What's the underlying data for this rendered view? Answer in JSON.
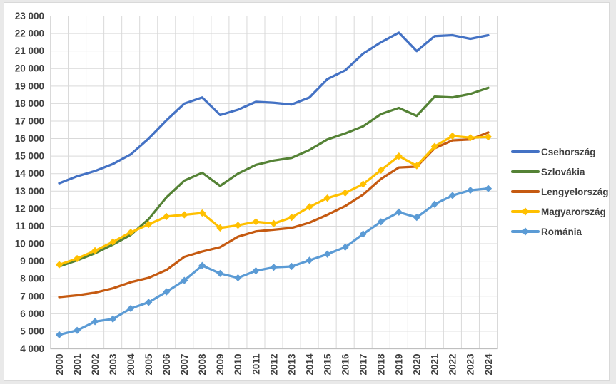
{
  "chart_data": {
    "type": "line",
    "title": "",
    "xlabel": "",
    "ylabel": "",
    "grid": true,
    "x_categories": [
      "2000",
      "2001",
      "2002",
      "2003",
      "2004",
      "2005",
      "2006",
      "2007",
      "2008",
      "2009",
      "2010",
      "2011",
      "2012",
      "2013",
      "2014",
      "2015",
      "2016",
      "2017",
      "2018",
      "2019",
      "2020",
      "2021",
      "2022",
      "2023",
      "2024"
    ],
    "y_axis": {
      "min": 4000,
      "max": 23000,
      "step": 1000,
      "tick_labels": [
        "4 000",
        "5 000",
        "6 000",
        "7 000",
        "8 000",
        "9 000",
        "10 000",
        "11 000",
        "12 000",
        "13 000",
        "14 000",
        "15 000",
        "16 000",
        "17 000",
        "18 000",
        "19 000",
        "20 000",
        "21 000",
        "22 000",
        "23 000"
      ]
    },
    "legend": {
      "position": "right",
      "entries": [
        "Csehország",
        "Szlovákia",
        "Lengyelország",
        "Magyarország",
        "Románia"
      ]
    },
    "series": [
      {
        "name": "Csehország",
        "color": "#4472C4",
        "marker": "none",
        "values": [
          13450,
          13850,
          14150,
          14550,
          15100,
          16000,
          17050,
          18000,
          18350,
          17350,
          17650,
          18100,
          18050,
          17950,
          18350,
          19400,
          19900,
          20850,
          21500,
          22050,
          21000,
          21850,
          21900,
          21700,
          21900
        ]
      },
      {
        "name": "Szlovákia",
        "color": "#548235",
        "marker": "none",
        "values": [
          8700,
          9050,
          9450,
          9950,
          10500,
          11400,
          12650,
          13600,
          14050,
          13300,
          14000,
          14500,
          14750,
          14900,
          15350,
          15950,
          16300,
          16700,
          17400,
          17750,
          17300,
          18400,
          18350,
          18550,
          18900
        ]
      },
      {
        "name": "Lengyelország",
        "color": "#C55A11",
        "marker": "none",
        "values": [
          6950,
          7050,
          7200,
          7450,
          7800,
          8050,
          8500,
          9250,
          9550,
          9800,
          10400,
          10700,
          10800,
          10900,
          11200,
          11650,
          12150,
          12800,
          13700,
          14350,
          14400,
          15450,
          15900,
          15950,
          16350
        ]
      },
      {
        "name": "Magyarország",
        "color": "#FFC000",
        "marker": "diamond",
        "values": [
          8800,
          9150,
          9600,
          10100,
          10650,
          11100,
          11550,
          11650,
          11750,
          10900,
          11050,
          11250,
          11150,
          11500,
          12100,
          12600,
          12900,
          13400,
          14200,
          15000,
          14450,
          15550,
          16150,
          16050,
          16100
        ]
      },
      {
        "name": "Románia",
        "color": "#5B9BD5",
        "marker": "diamond",
        "values": [
          4800,
          5050,
          5550,
          5700,
          6300,
          6650,
          7250,
          7900,
          8750,
          8300,
          8050,
          8450,
          8650,
          8700,
          9050,
          9400,
          9800,
          10550,
          11250,
          11800,
          11500,
          12250,
          12750,
          13050,
          13150
        ]
      }
    ],
    "styles": {
      "gridline_color": "#d9d9d9",
      "axis_line_color": "#bfbfbf",
      "tick_label_color": "#404040",
      "plot_background": "#ffffff",
      "page_background": "#e9e9e9",
      "chart_border": "#d9d9d9"
    }
  }
}
